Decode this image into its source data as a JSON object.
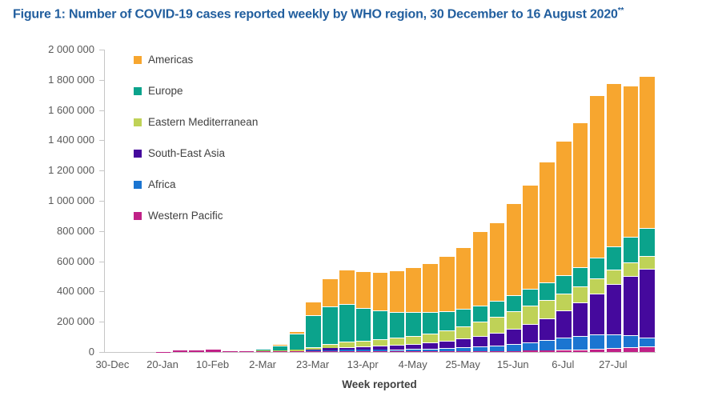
{
  "figure": {
    "title": "Figure 1: Number of COVID-19 cases reported weekly by WHO region, 30 December to 16 August 2020",
    "title_superscript": "**",
    "title_color": "#215E9E"
  },
  "chart_data": {
    "type": "bar",
    "stacked": true,
    "title": "Number of COVID-19 cases reported weekly by WHO region, 30 December to 16 August 2020",
    "xlabel": "Week reported",
    "ylabel": "",
    "ylim": [
      0,
      2000000
    ],
    "ytick_step": 200000,
    "ytick_labels": [
      "0",
      "200 000",
      "400 000",
      "600 000",
      "800 000",
      "1 000 000",
      "1 200 000",
      "1 400 000",
      "1 600 000",
      "1 800 000",
      "2 000 000"
    ],
    "grid": false,
    "legend_position": "inside-top-left",
    "xtick_every": 3,
    "xtick_labels_shown": [
      "30-Dec",
      "20-Jan",
      "10-Feb",
      "2-Mar",
      "23-Mar",
      "13-Apr",
      "4-May",
      "25-May",
      "15-Jun",
      "6-Jul",
      "27-Jul"
    ],
    "categories": [
      "30-Dec",
      "6-Jan",
      "13-Jan",
      "20-Jan",
      "27-Jan",
      "3-Feb",
      "10-Feb",
      "17-Feb",
      "24-Feb",
      "2-Mar",
      "9-Mar",
      "16-Mar",
      "23-Mar",
      "30-Mar",
      "6-Apr",
      "13-Apr",
      "20-Apr",
      "27-Apr",
      "4-May",
      "11-May",
      "18-May",
      "25-May",
      "1-Jun",
      "8-Jun",
      "15-Jun",
      "22-Jun",
      "29-Jun",
      "6-Jul",
      "13-Jul",
      "20-Jul",
      "27-Jul",
      "3-Aug",
      "10-Aug"
    ],
    "stack_order_bottom_to_top": [
      "Western Pacific",
      "Africa",
      "South-East Asia",
      "Eastern Mediterranean",
      "Europe",
      "Americas"
    ],
    "series": [
      {
        "name": "Americas",
        "color": "#F7A62F",
        "values": [
          0,
          0,
          0,
          0,
          100,
          100,
          100,
          100,
          300,
          600,
          2500,
          16000,
          92000,
          185000,
          228000,
          242000,
          255000,
          278000,
          298000,
          322000,
          362000,
          410000,
          490000,
          520000,
          610000,
          690000,
          800000,
          890000,
          960000,
          1075000,
          1080000,
          1000000,
          1010000
        ]
      },
      {
        "name": "Europe",
        "color": "#0BA38C",
        "values": [
          0,
          0,
          0,
          0,
          100,
          100,
          200,
          300,
          2000,
          8000,
          31000,
          103000,
          208000,
          250000,
          252000,
          218000,
          194000,
          170000,
          156000,
          140000,
          128000,
          116000,
          108000,
          104000,
          106000,
          110000,
          115000,
          121000,
          128000,
          138000,
          152000,
          166000,
          185000
        ]
      },
      {
        "name": "Eastern Mediterranean",
        "color": "#BFD257",
        "values": [
          0,
          0,
          0,
          0,
          0,
          0,
          100,
          200,
          1500,
          4500,
          7500,
          9000,
          17000,
          28000,
          34000,
          37000,
          41000,
          46000,
          52000,
          60000,
          70000,
          80000,
          94000,
          106000,
          116000,
          122000,
          118000,
          112000,
          106000,
          100000,
          96000,
          90000,
          84000
        ]
      },
      {
        "name": "South-East Asia",
        "color": "#45099D",
        "values": [
          0,
          0,
          0,
          0,
          0,
          100,
          100,
          100,
          100,
          300,
          600,
          1600,
          5000,
          12000,
          18000,
          21000,
          25000,
          29000,
          34000,
          40000,
          47000,
          57000,
          68000,
          82000,
          100000,
          120000,
          145000,
          178000,
          218000,
          270000,
          335000,
          395000,
          452000
        ]
      },
      {
        "name": "Africa",
        "color": "#1B75D1",
        "values": [
          0,
          0,
          0,
          0,
          0,
          0,
          0,
          0,
          100,
          100,
          300,
          1500,
          5000,
          7000,
          9000,
          10000,
          12000,
          14000,
          16000,
          19000,
          22000,
          26000,
          32000,
          38000,
          46000,
          56000,
          68000,
          80000,
          90000,
          95000,
          90000,
          78000,
          62000
        ]
      },
      {
        "name": "Western Pacific",
        "color": "#C02187",
        "values": [
          100,
          100,
          400,
          2500,
          10000,
          18500,
          21000,
          3000,
          4000,
          5500,
          5600,
          6000,
          7000,
          6000,
          6000,
          5000,
          5000,
          4500,
          4500,
          4500,
          5000,
          5000,
          6000,
          7000,
          8000,
          10000,
          12000,
          15000,
          18000,
          22000,
          26000,
          31000,
          35000
        ]
      }
    ]
  }
}
